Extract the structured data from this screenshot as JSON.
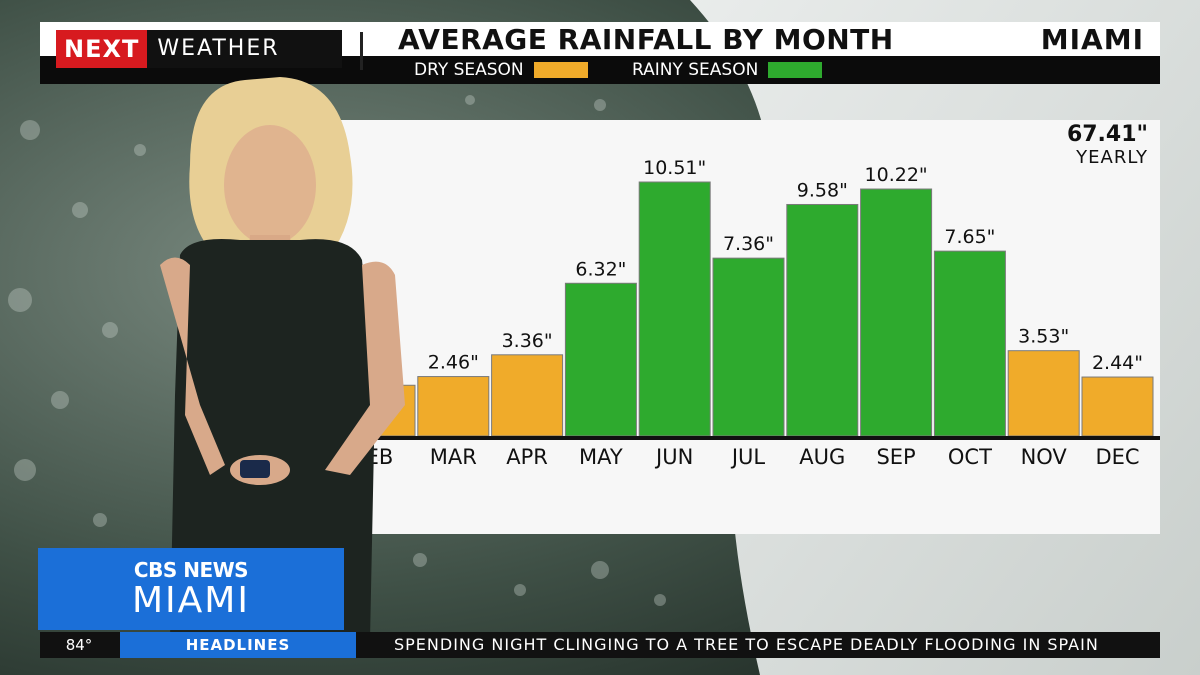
{
  "header": {
    "logo_next": "NEXT",
    "logo_weather": "WEATHER",
    "title": "AVERAGE RAINFALL BY MONTH",
    "city": "MIAMI",
    "legend": [
      {
        "label": "DRY SEASON",
        "color": "#f0ab2a"
      },
      {
        "label": "RAINY SEASON",
        "color": "#2eaa2e"
      }
    ]
  },
  "total": {
    "value": "67.41\"",
    "label": "YEARLY"
  },
  "chart_data": {
    "type": "bar",
    "title": "AVERAGE RAINFALL BY MONTH",
    "categories": [
      "FEB",
      "MAR",
      "APR",
      "MAY",
      "JUN",
      "JUL",
      "AUG",
      "SEP",
      "OCT",
      "NOV",
      "DEC"
    ],
    "values": [
      2.1,
      2.46,
      3.36,
      6.32,
      10.51,
      7.36,
      9.58,
      10.22,
      7.65,
      3.53,
      2.44
    ],
    "value_labels": [
      "",
      "2.46\"",
      "3.36\"",
      "6.32\"",
      "10.51\"",
      "7.36\"",
      "9.58\"",
      "10.22\"",
      "7.65\"",
      "3.53\"",
      "2.44\""
    ],
    "category_labels": [
      "EB",
      "MAR",
      "APR",
      "MAY",
      "JUN",
      "JUL",
      "AUG",
      "SEP",
      "OCT",
      "NOV",
      "DEC"
    ],
    "season": [
      "dry",
      "dry",
      "dry",
      "rainy",
      "rainy",
      "rainy",
      "rainy",
      "rainy",
      "rainy",
      "dry",
      "dry"
    ],
    "colors": {
      "dry": "#f0ab2a",
      "rainy": "#2eaa2e"
    },
    "ylim": [
      0,
      12
    ],
    "grid": false
  },
  "branding": {
    "line1": "CBS NEWS",
    "line2": "MIAMI"
  },
  "ticker": {
    "temp": "84°",
    "tag": "HEADLINES",
    "headline": "SPENDING NIGHT CLINGING TO A TREE TO ESCAPE DEADLY FLOODING IN SPAIN"
  }
}
